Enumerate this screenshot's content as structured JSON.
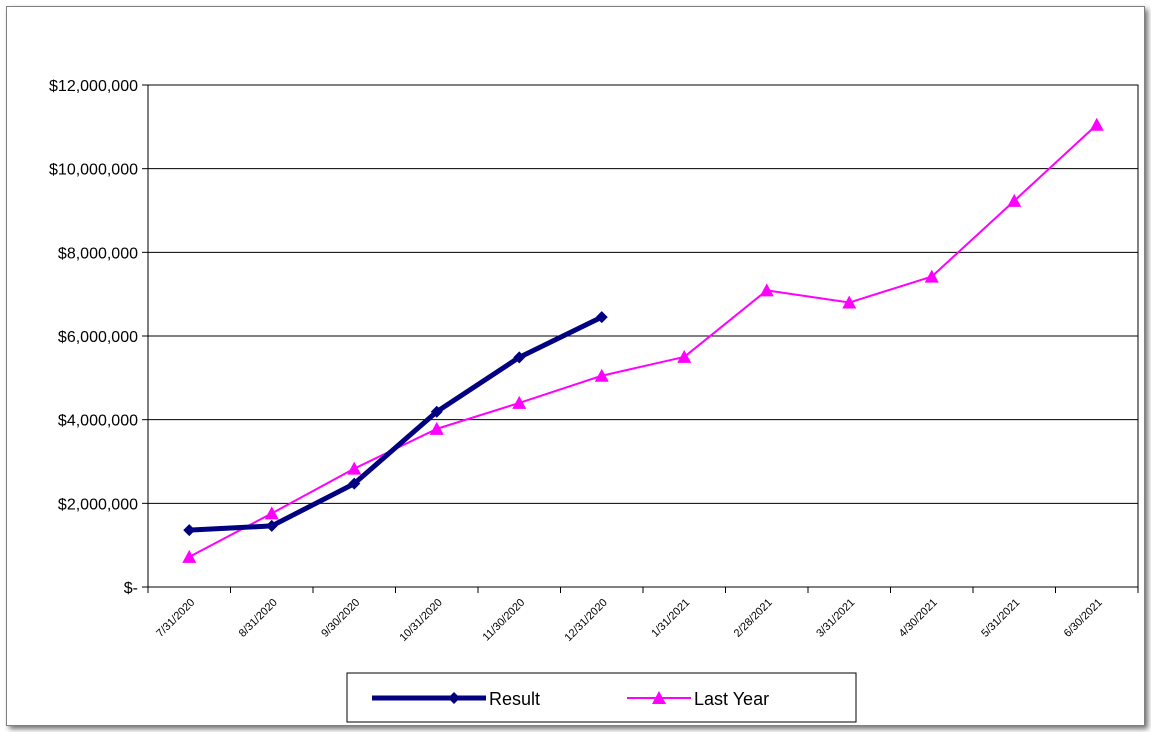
{
  "chart_data": {
    "type": "line",
    "categories": [
      "7/31/2020",
      "8/31/2020",
      "9/30/2020",
      "10/31/2020",
      "11/30/2020",
      "12/31/2020",
      "1/31/2021",
      "2/28/2021",
      "3/31/2021",
      "4/30/2021",
      "5/31/2021",
      "6/30/2021"
    ],
    "y_tick_labels": [
      "$-",
      "$2,000,000",
      "$4,000,000",
      "$6,000,000",
      "$8,000,000",
      "$10,000,000",
      "$12,000,000"
    ],
    "ylim": [
      0,
      12000000
    ],
    "grid": true,
    "legend_position": "bottom",
    "series": [
      {
        "name": "Result",
        "color": "#000080",
        "marker": "diamond",
        "values": [
          1360000,
          1460000,
          2470000,
          4190000,
          5490000,
          6450000,
          null,
          null,
          null,
          null,
          null,
          null
        ]
      },
      {
        "name": "Last Year",
        "color": "#FF00FF",
        "marker": "triangle",
        "values": [
          720000,
          1760000,
          2830000,
          3780000,
          4400000,
          5050000,
          5500000,
          7090000,
          6800000,
          7420000,
          9230000,
          11050000
        ]
      }
    ]
  }
}
